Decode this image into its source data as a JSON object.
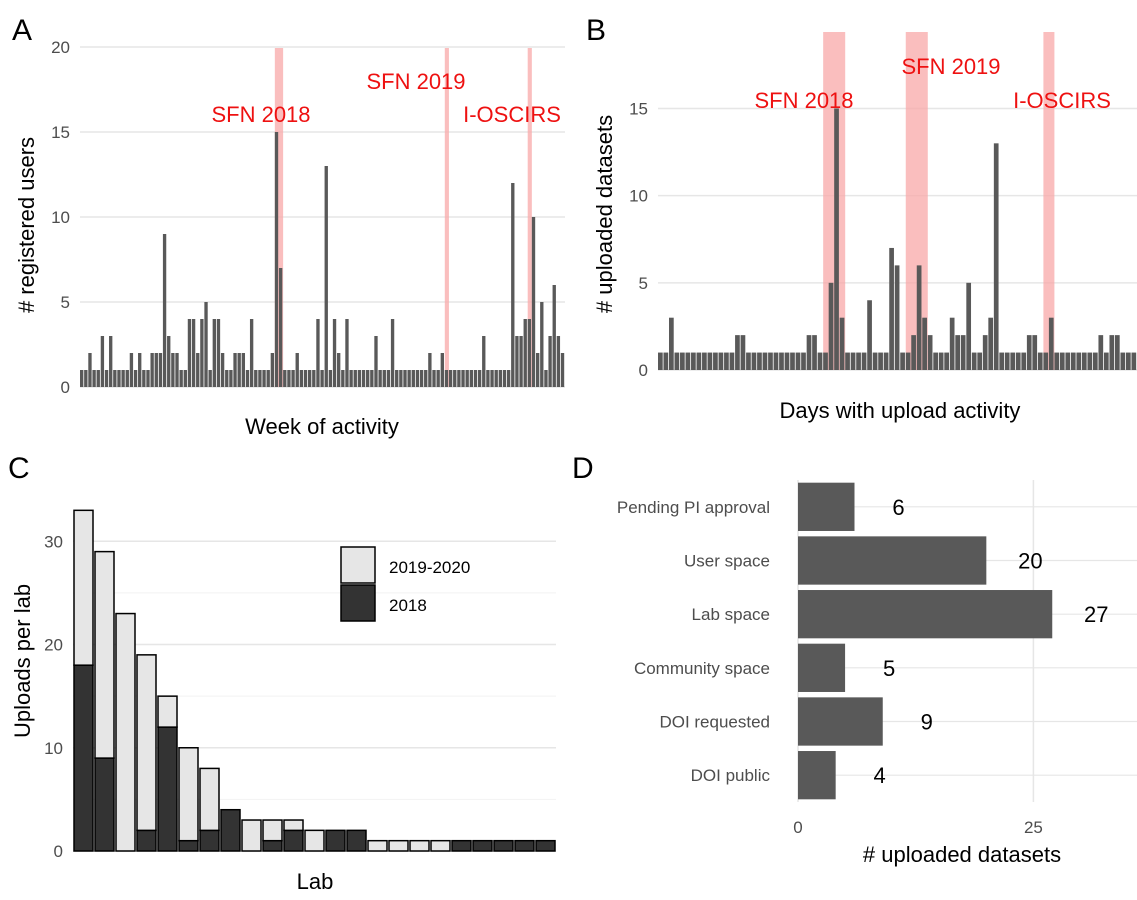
{
  "chart_data": [
    {
      "panel": "A",
      "type": "bar",
      "xlabel": "Week of activity",
      "ylabel": "# registered users",
      "ylim": [
        0,
        21
      ],
      "yticks": [
        0,
        5,
        10,
        15,
        20
      ],
      "grid": true,
      "values": [
        1,
        1,
        2,
        1,
        1,
        3,
        1,
        3,
        1,
        1,
        1,
        1,
        2,
        1,
        2,
        1,
        1,
        2,
        2,
        2,
        9,
        3,
        2,
        2,
        1,
        1,
        4,
        4,
        2,
        4,
        5,
        1,
        4,
        4,
        2,
        1,
        1,
        2,
        2,
        2,
        1,
        4,
        1,
        1,
        1,
        1,
        2,
        15,
        7,
        1,
        1,
        1,
        2,
        1,
        1,
        1,
        1,
        4,
        1,
        13,
        1,
        4,
        2,
        1,
        4,
        1,
        1,
        1,
        1,
        1,
        1,
        3,
        1,
        1,
        1,
        4,
        1,
        1,
        1,
        1,
        1,
        1,
        1,
        1,
        2,
        1,
        1,
        2,
        1,
        1,
        1,
        1,
        1,
        1,
        1,
        1,
        1,
        3,
        1,
        1,
        1,
        1,
        1,
        1,
        12,
        3,
        3,
        4,
        4,
        10,
        2,
        5,
        1,
        3,
        6,
        3,
        2
      ],
      "highlights": [
        {
          "label": "SFN 2018",
          "start": 47,
          "end": 49
        },
        {
          "label": "SFN 2019",
          "start": 88,
          "end": 89
        },
        {
          "label": "I-OSCIRS",
          "start": 108,
          "end": 109
        }
      ],
      "highlight_color": "#f8a8a8",
      "bar_color": "#595959"
    },
    {
      "panel": "B",
      "type": "bar",
      "xlabel": "Days with upload activity",
      "ylabel": "# uploaded datasets",
      "ylim": [
        0,
        19.5
      ],
      "yticks": [
        0,
        5,
        10,
        15
      ],
      "grid": true,
      "values": [
        1,
        1,
        3,
        1,
        1,
        1,
        1,
        1,
        1,
        1,
        1,
        1,
        1,
        1,
        2,
        2,
        1,
        1,
        1,
        1,
        1,
        1,
        1,
        1,
        1,
        1,
        1,
        2,
        2,
        1,
        1,
        5,
        15,
        3,
        1,
        1,
        1,
        1,
        4,
        1,
        1,
        1,
        7,
        6,
        1,
        1,
        2,
        6,
        3,
        2,
        1,
        1,
        1,
        3,
        2,
        2,
        5,
        1,
        1,
        2,
        3,
        13,
        1,
        1,
        1,
        1,
        1,
        2,
        2,
        1,
        1,
        3,
        1,
        1,
        1,
        1,
        1,
        1,
        1,
        1,
        2,
        1,
        2,
        2,
        1,
        1,
        1
      ],
      "highlights": [
        {
          "label": "SFN 2018",
          "start": 30,
          "end": 34
        },
        {
          "label": "SFN 2019",
          "start": 45,
          "end": 49
        },
        {
          "label": "I-OSCIRS",
          "start": 70,
          "end": 72
        }
      ],
      "highlight_color": "#f8a8a8",
      "bar_color": "#595959"
    },
    {
      "panel": "C",
      "type": "bar",
      "stacked": true,
      "xlabel": "Lab",
      "ylabel": "Uploads per lab",
      "ylim": [
        0,
        34
      ],
      "yticks": [
        0,
        10,
        20,
        30
      ],
      "grid": true,
      "legend": "top-right",
      "series": [
        {
          "name": "2018",
          "color": "#333333",
          "values": [
            18,
            9,
            0,
            2,
            12,
            1,
            2,
            4,
            0,
            1,
            2,
            0,
            2,
            2,
            0,
            0,
            0,
            0,
            1,
            1,
            1,
            1,
            1
          ]
        },
        {
          "name": "2019-2020",
          "color": "#e6e6e6",
          "values": [
            15,
            20,
            23,
            17,
            3,
            9,
            6,
            0,
            3,
            2,
            1,
            2,
            0,
            0,
            1,
            1,
            1,
            1,
            0,
            0,
            0,
            0,
            0
          ]
        }
      ]
    },
    {
      "panel": "D",
      "type": "bar",
      "orientation": "horizontal",
      "xlabel": "# uploaded datasets",
      "xlim": [
        0,
        36
      ],
      "xticks": [
        0,
        25
      ],
      "grid": true,
      "bar_color": "#595959",
      "categories": [
        "Pending PI approval",
        "User space",
        "Lab space",
        "Community space",
        "DOI requested",
        "DOI public"
      ],
      "values": [
        6,
        20,
        27,
        5,
        9,
        4
      ]
    }
  ],
  "panel_letters": [
    "A",
    "B",
    "C",
    "D"
  ]
}
